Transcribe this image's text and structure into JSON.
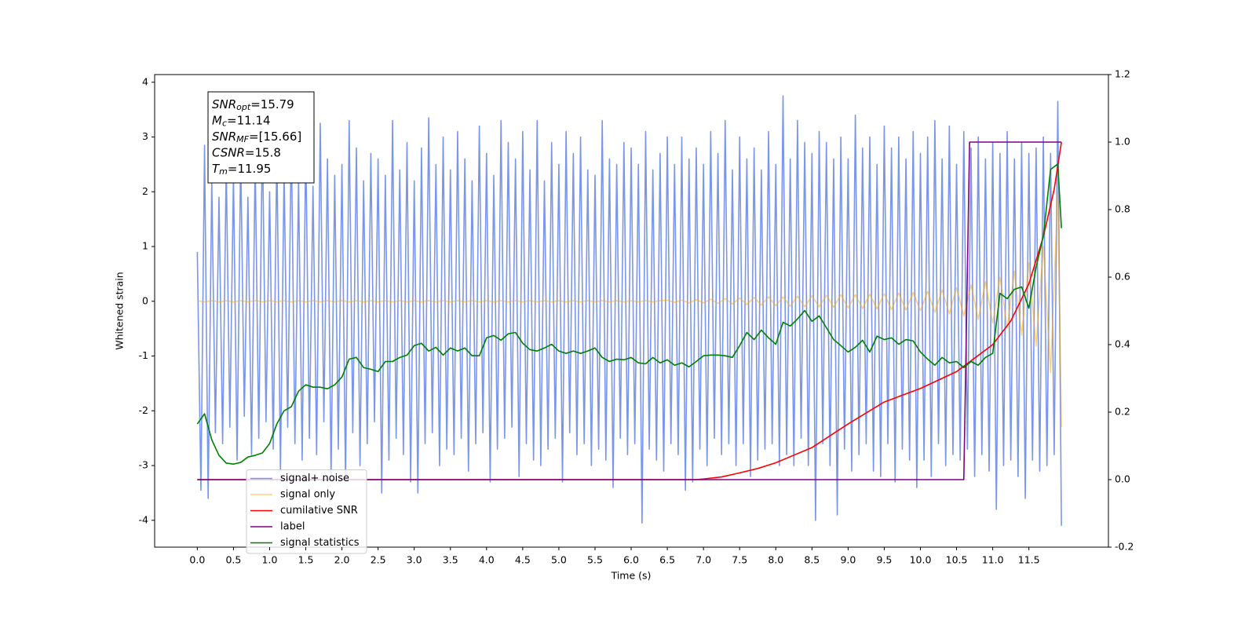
{
  "chart_data": {
    "type": "line",
    "xlabel": "Time (s)",
    "ylabel": "Whitened strain",
    "xlim": [
      -0.59,
      12.6
    ],
    "ylim": [
      -4.49,
      4.14
    ],
    "y2lim": [
      -0.2,
      1.2
    ],
    "xticks": [
      {
        "value": 0,
        "label": "0.0"
      },
      0.5,
      {
        "value": 1,
        "label": "1.0"
      },
      1.5,
      {
        "value": 2,
        "label": "2.0"
      },
      2.5,
      {
        "value": 3,
        "label": "3.0"
      },
      3.5,
      {
        "value": 4,
        "label": "4.0"
      },
      4.5,
      {
        "value": 5,
        "label": "5.0"
      },
      5.5,
      {
        "value": 6,
        "label": "6.0"
      },
      6.5,
      {
        "value": 7,
        "label": "7.0"
      },
      7.5,
      {
        "value": 8,
        "label": "8.0"
      },
      8.5,
      {
        "value": 9,
        "label": "9.0"
      },
      9.5,
      {
        "value": 10,
        "label": "10.0"
      },
      10.5,
      {
        "value": 11,
        "label": "11.0"
      },
      11.5
    ],
    "yticks": [
      -4,
      -3,
      -2,
      -1,
      0,
      1,
      2,
      3,
      4
    ],
    "y2ticks": [
      -0.2,
      {
        "value": 0,
        "label": "0.0"
      },
      0.2,
      0.4,
      0.6,
      0.8,
      {
        "value": 1,
        "label": "1.0"
      },
      1.2
    ],
    "grid": false,
    "legend": "lower left",
    "annotations": [
      {
        "symbol": "SNR",
        "subscript": "opt",
        "text": "=15.79"
      },
      {
        "symbol": "M",
        "subscript": "c",
        "text": "=11.14"
      },
      {
        "symbol": "SNR",
        "subscript": "MF",
        "text": "=[15.66]"
      },
      {
        "symbol": "CSNR",
        "text": "=15.8"
      },
      {
        "symbol": "T",
        "subscript": "m",
        "text": "=11.95"
      }
    ],
    "series": [
      {
        "name": "signal+ noise",
        "color": "#4169e1",
        "alpha": 0.7,
        "x": [
          0,
          0.05,
          0.1,
          0.15,
          0.2,
          0.25,
          0.3,
          0.35,
          0.4,
          0.45,
          0.5,
          0.55,
          0.6,
          0.65,
          0.7,
          0.75,
          0.8,
          0.85,
          0.9,
          0.95,
          1,
          1.05,
          1.1,
          1.15,
          1.2,
          1.25,
          1.3,
          1.35,
          1.4,
          1.45,
          1.5,
          1.55,
          1.6,
          1.65,
          1.7,
          1.75,
          1.8,
          1.85,
          1.9,
          1.95,
          2,
          2.05,
          2.1,
          2.15,
          2.2,
          2.25,
          2.3,
          2.35,
          2.4,
          2.45,
          2.5,
          2.55,
          2.6,
          2.65,
          2.7,
          2.75,
          2.8,
          2.85,
          2.9,
          2.95,
          3,
          3.05,
          3.1,
          3.15,
          3.2,
          3.25,
          3.3,
          3.35,
          3.4,
          3.45,
          3.5,
          3.55,
          3.6,
          3.65,
          3.7,
          3.75,
          3.8,
          3.85,
          3.9,
          3.95,
          4,
          4.05,
          4.1,
          4.15,
          4.2,
          4.25,
          4.3,
          4.35,
          4.4,
          4.45,
          4.5,
          4.55,
          4.6,
          4.65,
          4.7,
          4.75,
          4.8,
          4.85,
          4.9,
          4.95,
          5,
          5.05,
          5.1,
          5.15,
          5.2,
          5.25,
          5.3,
          5.35,
          5.4,
          5.45,
          5.5,
          5.55,
          5.6,
          5.65,
          5.7,
          5.75,
          5.8,
          5.85,
          5.9,
          5.95,
          6,
          6.05,
          6.1,
          6.15,
          6.2,
          6.25,
          6.3,
          6.35,
          6.4,
          6.45,
          6.5,
          6.55,
          6.6,
          6.65,
          6.7,
          6.75,
          6.8,
          6.85,
          6.9,
          6.95,
          7,
          7.05,
          7.1,
          7.15,
          7.2,
          7.25,
          7.3,
          7.35,
          7.4,
          7.45,
          7.5,
          7.55,
          7.6,
          7.65,
          7.7,
          7.75,
          7.8,
          7.85,
          7.9,
          7.95,
          8,
          8.05,
          8.1,
          8.15,
          8.2,
          8.25,
          8.3,
          8.35,
          8.4,
          8.45,
          8.5,
          8.55,
          8.6,
          8.65,
          8.7,
          8.75,
          8.8,
          8.85,
          8.9,
          8.95,
          9,
          9.05,
          9.1,
          9.15,
          9.2,
          9.25,
          9.3,
          9.35,
          9.4,
          9.45,
          9.5,
          9.55,
          9.6,
          9.65,
          9.7,
          9.75,
          9.8,
          9.85,
          9.9,
          9.95,
          10,
          10.05,
          10.1,
          10.15,
          10.2,
          10.25,
          10.3,
          10.35,
          10.4,
          10.45,
          10.5,
          10.55,
          10.6,
          10.65,
          10.7,
          10.75,
          10.8,
          10.85,
          10.9,
          10.95,
          11,
          11.05,
          11.1,
          11.15,
          11.2,
          11.25,
          11.3,
          11.35,
          11.4,
          11.45,
          11.5,
          11.55,
          11.6,
          11.65,
          11.7,
          11.75,
          11.8,
          11.85,
          11.9,
          11.95
        ],
        "values": [
          0.9,
          -3.45,
          2.85,
          -3.6,
          2.2,
          -2.4,
          1.9,
          -2.6,
          2.5,
          -2.3,
          2.3,
          -2.9,
          2.7,
          -2.1,
          1.9,
          -2.8,
          2.6,
          -2.5,
          3.1,
          -2.2,
          2.0,
          -2.7,
          2.8,
          -3.1,
          2.4,
          -2.3,
          3.05,
          -2.6,
          2.2,
          -2.9,
          2.9,
          -2.5,
          2.1,
          -2.8,
          3.25,
          -2.2,
          2.6,
          -3.2,
          2.3,
          -2.7,
          2.5,
          -3.3,
          3.3,
          -2.4,
          2.8,
          -3.0,
          2.2,
          -2.6,
          2.7,
          -2.2,
          2.6,
          -3.5,
          2.3,
          -2.9,
          3.3,
          -2.5,
          2.4,
          -2.8,
          2.9,
          -3.3,
          2.2,
          -3.5,
          2.8,
          -2.6,
          3.35,
          -2.4,
          2.5,
          -3.0,
          3.0,
          -2.7,
          2.4,
          -2.8,
          3.1,
          -2.5,
          2.6,
          -3.1,
          2.2,
          -2.6,
          3.2,
          -2.4,
          2.7,
          -3.3,
          2.3,
          -2.7,
          3.3,
          -2.5,
          2.9,
          -2.3,
          2.6,
          -3.2,
          3.1,
          -2.6,
          2.4,
          -2.9,
          3.3,
          -3.0,
          2.2,
          -2.7,
          2.9,
          -2.5,
          2.5,
          -3.3,
          3.1,
          -2.4,
          2.7,
          -2.8,
          3.0,
          -2.6,
          2.4,
          -3.0,
          2.3,
          -2.7,
          3.3,
          -2.9,
          2.6,
          -3.4,
          2.5,
          -2.5,
          2.9,
          -2.8,
          2.8,
          -2.6,
          2.5,
          -4.05,
          3.1,
          -2.7,
          2.4,
          -2.9,
          2.7,
          -3.1,
          3.0,
          -2.6,
          2.5,
          -2.8,
          3.0,
          -3.45,
          2.6,
          -3.3,
          2.8,
          -2.7,
          2.5,
          -3.0,
          3.1,
          -2.5,
          2.7,
          -2.8,
          3.3,
          -2.6,
          2.4,
          -3.0,
          3.0,
          -2.6,
          2.6,
          -3.2,
          2.8,
          -2.9,
          2.4,
          -2.7,
          3.1,
          -2.6,
          2.5,
          -3.0,
          3.75,
          -2.8,
          2.6,
          -3.0,
          3.3,
          -2.5,
          2.9,
          -3.0,
          2.7,
          -4.0,
          3.1,
          -2.6,
          2.9,
          -3.0,
          2.6,
          -3.9,
          3.0,
          -2.7,
          2.6,
          -3.1,
          3.4,
          -2.8,
          2.8,
          -2.6,
          3.0,
          -3.1,
          2.5,
          -3.2,
          3.2,
          -2.6,
          2.8,
          -3.3,
          3.0,
          -2.7,
          2.6,
          -2.9,
          3.1,
          -3.4,
          2.7,
          -2.9,
          3.0,
          -3.2,
          3.3,
          -2.6,
          2.6,
          -3.0,
          3.2,
          -2.8,
          2.5,
          -2.9,
          3.1,
          -2.7,
          2.8,
          -3.2,
          3.0,
          -2.8,
          2.6,
          -3.1,
          2.9,
          -3.8,
          2.7,
          -3.0,
          3.1,
          -2.9,
          2.6,
          -3.2,
          2.9,
          -3.6,
          2.7,
          -2.9,
          2.8,
          -3.1,
          3.0,
          -3.0,
          2.7,
          -2.8,
          3.65,
          -4.1
        ]
      },
      {
        "name": "signal only",
        "color": "#ffa500",
        "alpha": 0.5,
        "x": [
          0,
          0.1,
          0.2,
          0.3,
          0.4,
          0.5,
          0.6,
          0.7,
          0.8,
          0.9,
          1,
          1.1,
          1.2,
          1.3,
          1.4,
          1.5,
          1.6,
          1.7,
          1.8,
          1.9,
          2,
          2.1,
          2.2,
          2.3,
          2.4,
          2.5,
          2.6,
          2.7,
          2.8,
          2.9,
          3,
          3.1,
          3.2,
          3.3,
          3.4,
          3.5,
          3.6,
          3.7,
          3.8,
          3.9,
          4,
          4.1,
          4.2,
          4.3,
          4.4,
          4.5,
          4.6,
          4.7,
          4.8,
          4.9,
          5,
          5.1,
          5.2,
          5.3,
          5.4,
          5.5,
          5.6,
          5.7,
          5.8,
          5.9,
          6,
          6.1,
          6.2,
          6.3,
          6.4,
          6.5,
          6.6,
          6.7,
          6.8,
          6.9,
          7,
          7.1,
          7.2,
          7.3,
          7.4,
          7.5,
          7.6,
          7.7,
          7.8,
          7.9,
          8,
          8.1,
          8.2,
          8.3,
          8.4,
          8.5,
          8.6,
          8.7,
          8.8,
          8.9,
          9,
          9.1,
          9.2,
          9.3,
          9.4,
          9.5,
          9.6,
          9.7,
          9.8,
          9.9,
          10,
          10.1,
          10.2,
          10.3,
          10.4,
          10.5,
          10.6,
          10.7,
          10.8,
          10.9,
          11,
          11.1,
          11.2,
          11.3,
          11.4,
          11.5,
          11.6,
          11.7,
          11.8,
          11.9,
          11.95
        ],
        "values": [
          0.01,
          -0.01,
          0.01,
          -0.01,
          0.01,
          -0.01,
          0.01,
          -0.01,
          0.01,
          -0.01,
          0.01,
          -0.01,
          0.01,
          -0.01,
          0.01,
          -0.01,
          0.01,
          -0.01,
          0.01,
          -0.01,
          0.01,
          -0.01,
          0.01,
          -0.01,
          0.01,
          -0.01,
          0.01,
          -0.01,
          0.01,
          -0.01,
          0.01,
          -0.01,
          0.01,
          -0.01,
          0.01,
          -0.01,
          0.01,
          -0.01,
          0.01,
          -0.01,
          0.01,
          -0.01,
          0.01,
          -0.01,
          0.01,
          -0.01,
          0.01,
          -0.01,
          0.01,
          -0.01,
          0.01,
          -0.01,
          0.01,
          -0.01,
          0.01,
          -0.01,
          0.01,
          -0.01,
          0.01,
          -0.01,
          0.01,
          -0.01,
          0.01,
          -0.01,
          0.01,
          0.02,
          -0.02,
          0.02,
          -0.03,
          0.03,
          -0.03,
          0.04,
          -0.04,
          0.05,
          -0.05,
          0.06,
          -0.06,
          0.07,
          -0.07,
          0.08,
          -0.08,
          0.08,
          -0.09,
          0.09,
          -0.1,
          0.1,
          -0.1,
          0.11,
          -0.11,
          0.12,
          -0.12,
          0.12,
          -0.13,
          0.13,
          -0.14,
          0.14,
          -0.15,
          0.15,
          -0.16,
          0.16,
          -0.17,
          0.18,
          -0.2,
          0.21,
          -0.23,
          0.25,
          -0.27,
          0.3,
          -0.33,
          0.36,
          -0.4,
          0.44,
          -0.49,
          0.55,
          -0.62,
          0.7,
          -0.82,
          1.0,
          -1.3,
          2.0,
          -2.3
        ]
      },
      {
        "name": "cumilative SNR",
        "color": "#ff0000",
        "axis": "y2",
        "x": [
          0,
          6.9,
          7.0,
          7.25,
          7.5,
          7.75,
          8.0,
          8.5,
          9.0,
          9.5,
          10.0,
          10.5,
          10.75,
          11.0,
          11.25,
          11.5,
          11.7,
          11.85,
          11.95
        ],
        "values": [
          0,
          0,
          0.002,
          0.008,
          0.02,
          0.033,
          0.05,
          0.095,
          0.165,
          0.23,
          0.27,
          0.32,
          0.36,
          0.4,
          0.47,
          0.58,
          0.72,
          0.86,
          1.0
        ]
      },
      {
        "name": "label",
        "color": "#800080",
        "axis": "y2",
        "x": [
          0,
          10.6,
          10.68,
          11.95
        ],
        "values": [
          0,
          0,
          1,
          1
        ]
      },
      {
        "name": "signal statistics",
        "color": "#008000",
        "axis": "y2",
        "x": [
          0,
          0.1,
          0.2,
          0.3,
          0.4,
          0.5,
          0.6,
          0.7,
          0.8,
          0.9,
          1,
          1.1,
          1.2,
          1.3,
          1.4,
          1.5,
          1.6,
          1.7,
          1.8,
          1.9,
          2,
          2.1,
          2.2,
          2.3,
          2.4,
          2.5,
          2.6,
          2.7,
          2.8,
          2.9,
          3,
          3.1,
          3.2,
          3.3,
          3.4,
          3.5,
          3.6,
          3.7,
          3.8,
          3.9,
          4,
          4.1,
          4.2,
          4.3,
          4.4,
          4.5,
          4.6,
          4.7,
          4.8,
          4.9,
          5,
          5.1,
          5.2,
          5.3,
          5.4,
          5.5,
          5.6,
          5.7,
          5.8,
          5.9,
          6,
          6.1,
          6.2,
          6.3,
          6.4,
          6.5,
          6.6,
          6.7,
          6.8,
          6.9,
          7,
          7.1,
          7.2,
          7.3,
          7.4,
          7.5,
          7.6,
          7.7,
          7.8,
          7.9,
          8,
          8.1,
          8.2,
          8.3,
          8.4,
          8.5,
          8.6,
          8.7,
          8.8,
          8.9,
          9,
          9.1,
          9.2,
          9.3,
          9.4,
          9.5,
          9.6,
          9.7,
          9.8,
          9.9,
          10,
          10.1,
          10.2,
          10.3,
          10.4,
          10.5,
          10.6,
          10.7,
          10.8,
          10.9,
          11,
          11.1,
          11.2,
          11.3,
          11.4,
          11.5,
          11.6,
          11.7,
          11.8,
          11.9,
          11.95
        ],
        "values": [
          0.165,
          0.195,
          0.118,
          0.072,
          0.049,
          0.046,
          0.051,
          0.067,
          0.072,
          0.079,
          0.107,
          0.165,
          0.204,
          0.216,
          0.262,
          0.281,
          0.274,
          0.274,
          0.269,
          0.281,
          0.304,
          0.357,
          0.362,
          0.332,
          0.327,
          0.32,
          0.35,
          0.35,
          0.362,
          0.369,
          0.397,
          0.404,
          0.381,
          0.392,
          0.369,
          0.39,
          0.381,
          0.39,
          0.367,
          0.367,
          0.42,
          0.427,
          0.413,
          0.432,
          0.436,
          0.404,
          0.385,
          0.381,
          0.39,
          0.401,
          0.381,
          0.374,
          0.381,
          0.374,
          0.381,
          0.39,
          0.362,
          0.35,
          0.357,
          0.355,
          0.362,
          0.346,
          0.343,
          0.362,
          0.346,
          0.355,
          0.339,
          0.346,
          0.334,
          0.35,
          0.367,
          0.369,
          0.369,
          0.367,
          0.362,
          0.397,
          0.436,
          0.415,
          0.443,
          0.42,
          0.401,
          0.466,
          0.455,
          0.476,
          0.501,
          0.469,
          0.485,
          0.45,
          0.415,
          0.397,
          0.378,
          0.392,
          0.413,
          0.378,
          0.425,
          0.415,
          0.42,
          0.401,
          0.415,
          0.411,
          0.378,
          0.357,
          0.339,
          0.362,
          0.346,
          0.35,
          0.332,
          0.35,
          0.339,
          0.362,
          0.374,
          0.552,
          0.536,
          0.564,
          0.571,
          0.508,
          0.629,
          0.722,
          0.919,
          0.935,
          0.745
        ]
      }
    ]
  }
}
